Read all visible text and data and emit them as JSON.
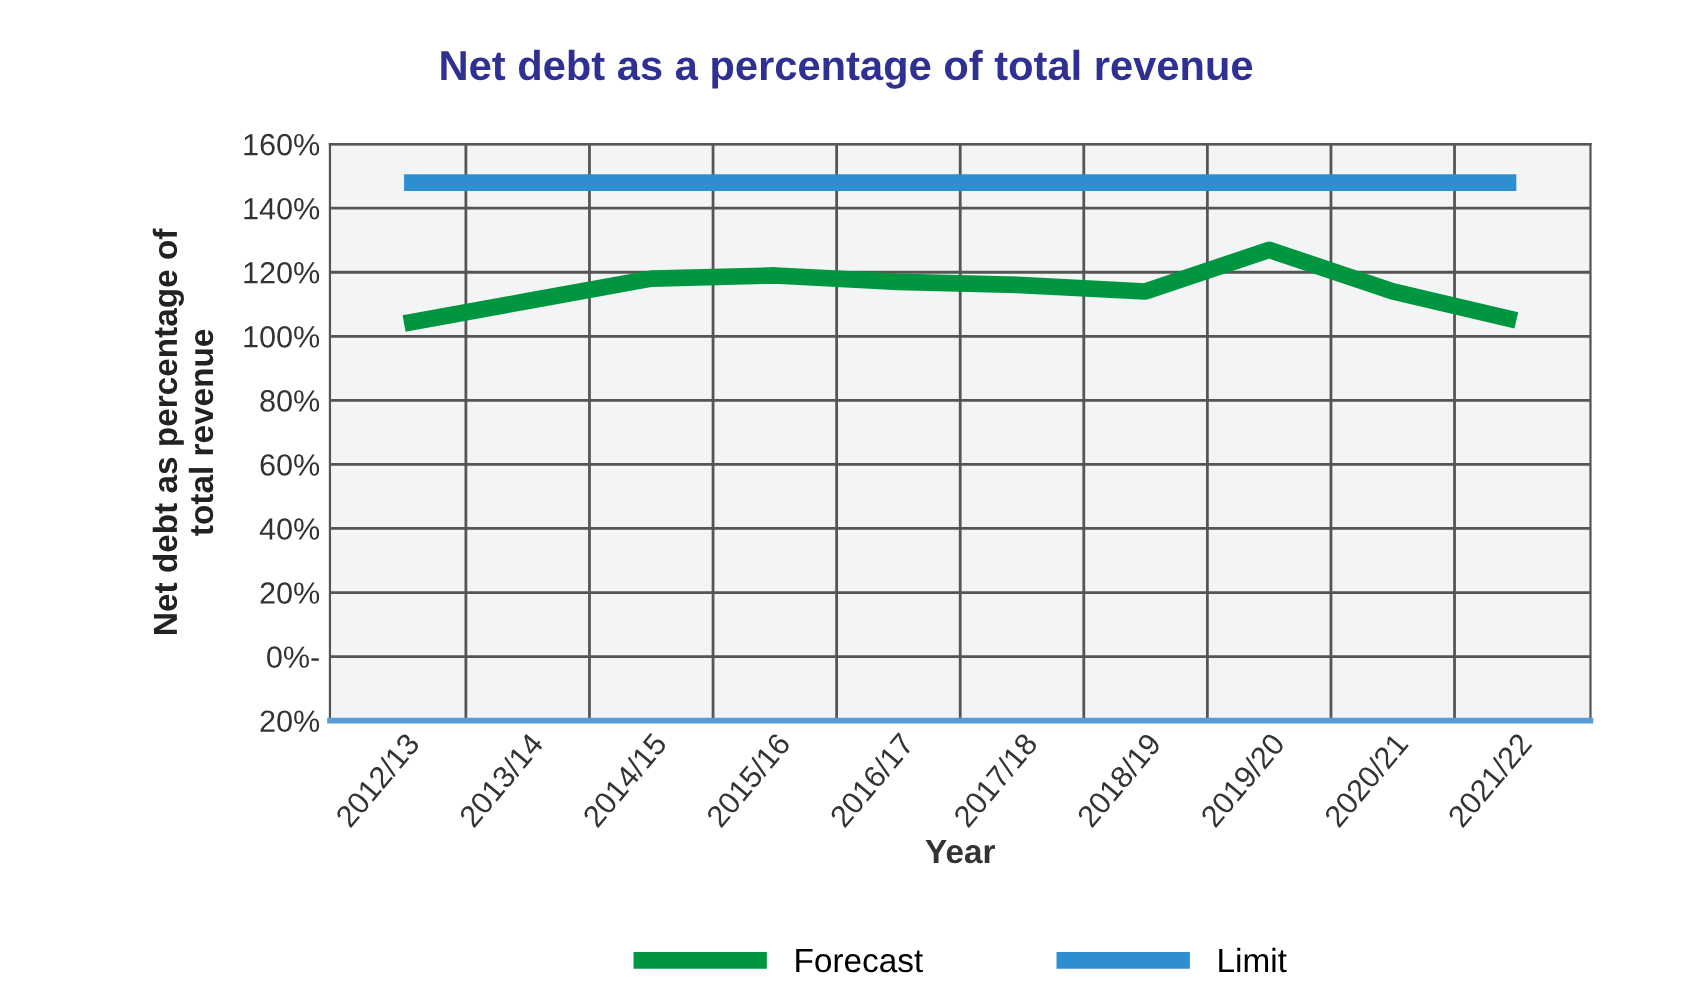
{
  "chart_data": {
    "type": "line",
    "title": "Net debt as a percentage of total revenue",
    "xlabel": "Year",
    "ylabel": "Net debt as percentage of\ntotal revenue",
    "categories": [
      "2012/13",
      "2013/14",
      "2014/15",
      "2015/16",
      "2016/17",
      "2017/18",
      "2018/19",
      "2019/20",
      "2020/21",
      "2021/22"
    ],
    "series": [
      {
        "name": "Forecast",
        "color": "#00963f",
        "values": [
          104,
          111,
          118,
          119,
          117,
          116,
          114,
          127,
          114,
          105
        ]
      },
      {
        "name": "Limit",
        "color": "#2d8fd0",
        "values": [
          148,
          148,
          148,
          148,
          148,
          148,
          148,
          148,
          148,
          148
        ]
      }
    ],
    "ylim": [
      -20,
      160
    ],
    "yticks": [
      {
        "value": -20,
        "label": "20%"
      },
      {
        "value": 0,
        "label": "0%-"
      },
      {
        "value": 20,
        "label": "20%"
      },
      {
        "value": 40,
        "label": "40%"
      },
      {
        "value": 60,
        "label": "60%"
      },
      {
        "value": 80,
        "label": "80%"
      },
      {
        "value": 100,
        "label": "100%"
      },
      {
        "value": 120,
        "label": "120%"
      },
      {
        "value": 140,
        "label": "140%"
      },
      {
        "value": 160,
        "label": "160%"
      }
    ],
    "grid": true,
    "legend": "bottom",
    "marker": "none",
    "line_style": "solid"
  }
}
